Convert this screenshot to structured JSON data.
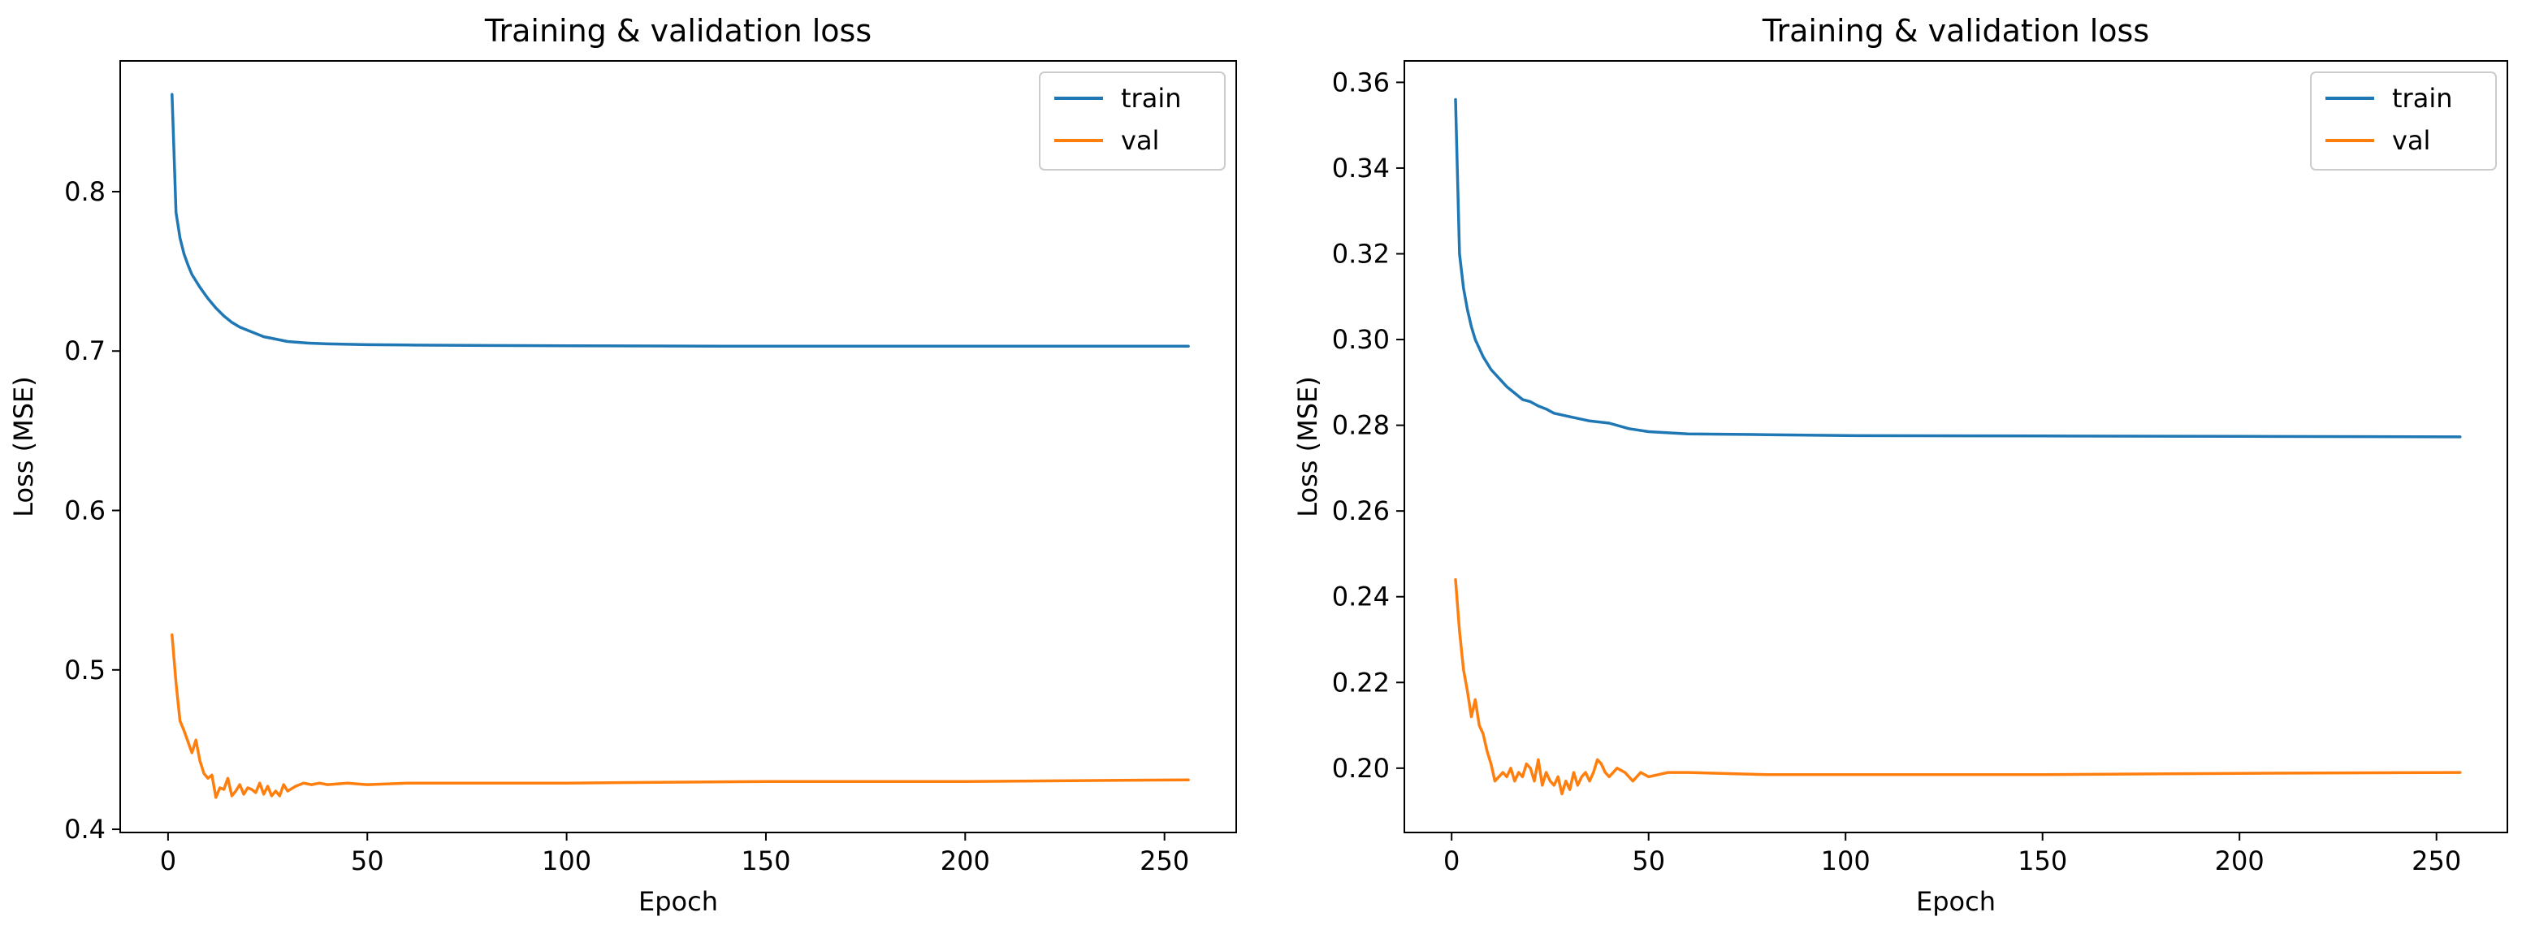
{
  "chart_data": [
    {
      "type": "line",
      "title": "Training & validation loss",
      "xlabel": "Epoch",
      "ylabel": "Loss (MSE)",
      "xlim": [
        -12,
        268
      ],
      "ylim": [
        0.398,
        0.882
      ],
      "xticks": [
        0,
        50,
        100,
        150,
        200,
        250
      ],
      "xtick_labels": [
        "0",
        "50",
        "100",
        "150",
        "200",
        "250"
      ],
      "yticks": [
        0.4,
        0.5,
        0.6,
        0.7,
        0.8
      ],
      "ytick_labels": [
        "0.4",
        "0.5",
        "0.6",
        "0.7",
        "0.8"
      ],
      "grid": false,
      "legend_position": "top-right",
      "series": [
        {
          "name": "train",
          "color": "#1f77b4",
          "x": [
            1,
            2,
            3,
            4,
            5,
            6,
            8,
            10,
            12,
            14,
            16,
            18,
            20,
            22,
            24,
            26,
            28,
            30,
            35,
            40,
            50,
            60,
            80,
            100,
            150,
            200,
            256
          ],
          "y": [
            0.861,
            0.787,
            0.771,
            0.761,
            0.754,
            0.748,
            0.74,
            0.733,
            0.727,
            0.722,
            0.718,
            0.715,
            0.713,
            0.711,
            0.709,
            0.708,
            0.707,
            0.706,
            0.705,
            0.7045,
            0.704,
            0.7038,
            0.7035,
            0.7033,
            0.703,
            0.703,
            0.703
          ]
        },
        {
          "name": "val",
          "color": "#ff7f0e",
          "x": [
            1,
            2,
            3,
            4,
            5,
            6,
            7,
            8,
            9,
            10,
            11,
            12,
            13,
            14,
            15,
            16,
            17,
            18,
            19,
            20,
            21,
            22,
            23,
            24,
            25,
            26,
            27,
            28,
            29,
            30,
            32,
            34,
            36,
            38,
            40,
            45,
            50,
            60,
            80,
            100,
            150,
            200,
            256
          ],
          "y": [
            0.522,
            0.492,
            0.468,
            0.462,
            0.455,
            0.448,
            0.456,
            0.443,
            0.435,
            0.432,
            0.434,
            0.42,
            0.426,
            0.425,
            0.432,
            0.421,
            0.424,
            0.428,
            0.422,
            0.426,
            0.425,
            0.423,
            0.429,
            0.422,
            0.427,
            0.421,
            0.424,
            0.421,
            0.428,
            0.424,
            0.427,
            0.429,
            0.428,
            0.429,
            0.428,
            0.429,
            0.428,
            0.429,
            0.429,
            0.429,
            0.43,
            0.43,
            0.431
          ]
        }
      ]
    },
    {
      "type": "line",
      "title": "Training & validation loss",
      "xlabel": "Epoch",
      "ylabel": "Loss (MSE)",
      "xlim": [
        -12,
        268
      ],
      "ylim": [
        0.185,
        0.365
      ],
      "xticks": [
        0,
        50,
        100,
        150,
        200,
        250
      ],
      "xtick_labels": [
        "0",
        "50",
        "100",
        "150",
        "200",
        "250"
      ],
      "yticks": [
        0.2,
        0.22,
        0.24,
        0.26,
        0.28,
        0.3,
        0.32,
        0.34,
        0.36
      ],
      "ytick_labels": [
        "0.20",
        "0.22",
        "0.24",
        "0.26",
        "0.28",
        "0.30",
        "0.32",
        "0.34",
        "0.36"
      ],
      "grid": false,
      "legend_position": "top-right",
      "series": [
        {
          "name": "train",
          "color": "#1f77b4",
          "x": [
            1,
            2,
            3,
            4,
            5,
            6,
            8,
            10,
            12,
            14,
            16,
            18,
            20,
            22,
            24,
            26,
            28,
            30,
            35,
            40,
            45,
            50,
            60,
            80,
            100,
            150,
            200,
            256
          ],
          "y": [
            0.356,
            0.32,
            0.312,
            0.307,
            0.303,
            0.3,
            0.296,
            0.293,
            0.291,
            0.289,
            0.2875,
            0.286,
            0.2855,
            0.2845,
            0.2838,
            0.2828,
            0.2824,
            0.282,
            0.281,
            0.2805,
            0.2792,
            0.2785,
            0.278,
            0.2778,
            0.2776,
            0.2775,
            0.2774,
            0.2773
          ]
        },
        {
          "name": "val",
          "color": "#ff7f0e",
          "x": [
            1,
            2,
            3,
            4,
            5,
            6,
            7,
            8,
            9,
            10,
            11,
            12,
            13,
            14,
            15,
            16,
            17,
            18,
            19,
            20,
            21,
            22,
            23,
            24,
            25,
            26,
            27,
            28,
            29,
            30,
            31,
            32,
            33,
            34,
            35,
            36,
            37,
            38,
            39,
            40,
            42,
            44,
            46,
            48,
            50,
            55,
            60,
            80,
            100,
            150,
            200,
            256
          ],
          "y": [
            0.244,
            0.232,
            0.223,
            0.218,
            0.212,
            0.216,
            0.21,
            0.208,
            0.204,
            0.201,
            0.197,
            0.198,
            0.199,
            0.198,
            0.2,
            0.197,
            0.199,
            0.198,
            0.201,
            0.2,
            0.197,
            0.202,
            0.196,
            0.199,
            0.197,
            0.196,
            0.198,
            0.194,
            0.197,
            0.195,
            0.199,
            0.196,
            0.198,
            0.199,
            0.197,
            0.199,
            0.202,
            0.201,
            0.199,
            0.198,
            0.2,
            0.199,
            0.197,
            0.199,
            0.198,
            0.199,
            0.199,
            0.1985,
            0.1985,
            0.1985,
            0.1988,
            0.199
          ]
        }
      ]
    }
  ]
}
